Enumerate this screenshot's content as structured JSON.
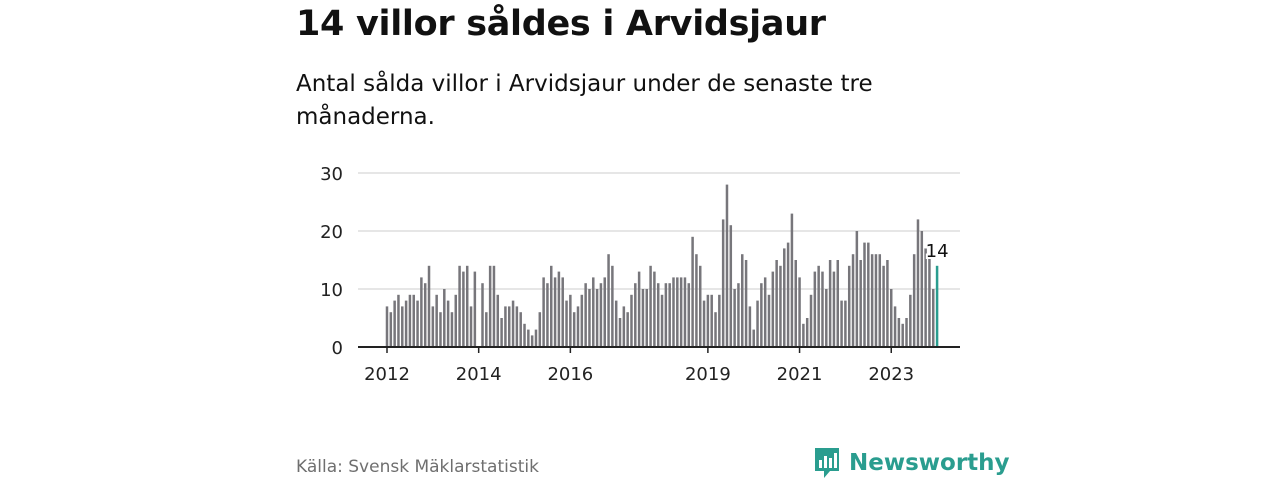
{
  "title": "14 villor såldes i Arvidsjaur",
  "subtitle": "Antal sålda villor i Arvidsjaur under de senaste tre månaderna.",
  "source": "Källa: Svensk Mäklarstatistik",
  "brand": "Newsworthy",
  "colors": {
    "bar": "#77767b",
    "highlight": "#2a9d8f",
    "grid": "#dddddd",
    "axis": "#222222",
    "brand": "#2a9d8f"
  },
  "chart_data": {
    "type": "bar",
    "title": "14 villor såldes i Arvidsjaur",
    "xlabel": "",
    "ylabel": "",
    "ylim": [
      0,
      30
    ],
    "yticks": [
      0,
      10,
      20,
      30
    ],
    "grid": true,
    "start_year": 2012,
    "start_month": 1,
    "xticks": [
      "2012",
      "2014",
      "2016",
      "2019",
      "2021",
      "2023"
    ],
    "x_tick_years": [
      2012,
      2014,
      2016,
      2019,
      2021,
      2023
    ],
    "highlight_label": "14",
    "series": [
      {
        "name": "Antal sålda villor",
        "values": [
          7,
          6,
          8,
          9,
          7,
          8,
          9,
          9,
          8,
          12,
          11,
          14,
          7,
          9,
          6,
          10,
          8,
          6,
          9,
          14,
          13,
          14,
          7,
          13,
          0,
          11,
          6,
          14,
          14,
          9,
          5,
          7,
          7,
          8,
          7,
          6,
          4,
          3,
          2,
          3,
          6,
          12,
          11,
          14,
          12,
          13,
          12,
          8,
          9,
          6,
          7,
          9,
          11,
          10,
          12,
          10,
          11,
          12,
          16,
          14,
          8,
          5,
          7,
          6,
          9,
          11,
          13,
          10,
          10,
          14,
          13,
          11,
          9,
          11,
          11,
          12,
          12,
          12,
          12,
          11,
          19,
          16,
          14,
          8,
          9,
          9,
          6,
          9,
          22,
          28,
          21,
          10,
          11,
          16,
          15,
          7,
          3,
          8,
          11,
          12,
          9,
          13,
          15,
          14,
          17,
          18,
          23,
          15,
          12,
          4,
          5,
          9,
          13,
          14,
          13,
          10,
          15,
          13,
          15,
          8,
          8,
          14,
          16,
          20,
          15,
          18,
          18,
          16,
          16,
          16,
          14,
          15,
          10,
          7,
          5,
          4,
          5,
          9,
          16,
          22,
          20,
          17,
          16,
          10,
          14
        ]
      }
    ]
  }
}
